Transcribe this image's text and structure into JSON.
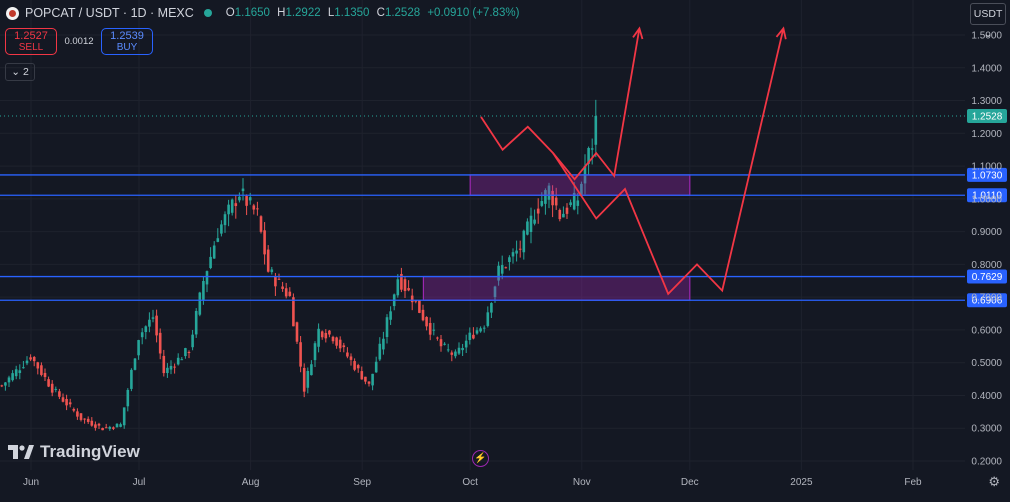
{
  "header": {
    "symbol": "POPCAT / USDT · 1D · MEXC",
    "open_label": "O",
    "open": "1.1650",
    "high_label": "H",
    "high": "1.2922",
    "low_label": "L",
    "low": "1.1350",
    "close_label": "C",
    "close": "1.2528",
    "change": "+0.0910 (+7.83%)"
  },
  "trade": {
    "sell_price": "1.2527",
    "sell_label": "SELL",
    "spread": "0.0012",
    "buy_price": "1.2539",
    "buy_label": "BUY"
  },
  "indicators_toggle": "2",
  "currency": "USDT",
  "brand": "TradingView",
  "colors": {
    "up": "#26a69a",
    "down": "#ef5350",
    "levels": "#2962ff",
    "zones": "#9c27b0",
    "projection": "#f23645",
    "background": "#141823"
  },
  "chart_data": {
    "type": "candlestick",
    "y_ticks": [
      "0.2000",
      "0.3000",
      "0.4000",
      "0.5000",
      "0.6000",
      "0.7000",
      "0.8000",
      "0.9000",
      "1.0000",
      "1.1000",
      "1.2000",
      "1.3000",
      "1.4000",
      "1.5000"
    ],
    "x_ticks": [
      "Jun",
      "Jul",
      "Aug",
      "Sep",
      "Oct",
      "Nov",
      "Dec",
      "2025",
      "Feb"
    ],
    "last_price": "1.2528",
    "levels": [
      "1.0730",
      "1.0110",
      "0.7629",
      "0.6906"
    ],
    "zones": [
      {
        "top": 1.073,
        "bottom": 1.011,
        "from": "2024-10-01",
        "to": "2024-12-01"
      },
      {
        "top": 0.7629,
        "bottom": 0.6906,
        "from": "2024-09-18",
        "to": "2024-12-01"
      }
    ],
    "projection_path": [
      [
        "2024-10-04",
        1.25
      ],
      [
        "2024-10-10",
        1.15
      ],
      [
        "2024-10-17",
        1.22
      ],
      [
        "2024-10-24",
        1.14
      ],
      [
        "2024-10-30",
        1.06
      ],
      [
        "2024-11-05",
        1.14
      ],
      [
        "2024-11-10",
        1.07
      ],
      [
        "2024-11-17",
        1.52
      ]
    ],
    "projection_path_2": [
      [
        "2024-10-24",
        1.14
      ],
      [
        "2024-11-05",
        0.94
      ],
      [
        "2024-11-13",
        1.03
      ],
      [
        "2024-11-25",
        0.71
      ],
      [
        "2024-12-03",
        0.8
      ],
      [
        "2024-12-10",
        0.72
      ],
      [
        "2024-12-27",
        1.52
      ]
    ]
  }
}
